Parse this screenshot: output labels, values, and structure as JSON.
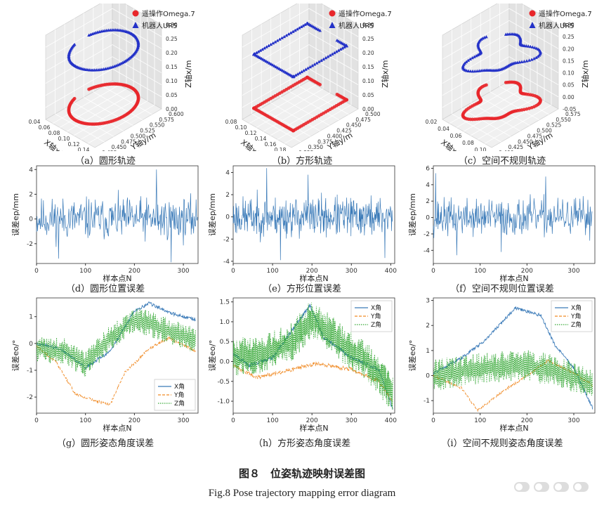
{
  "figure": {
    "title": "图８　位姿轨迹映射误差图",
    "subtitle": "Fig.8  Pose trajectory mapping error diagram"
  },
  "colors": {
    "red": "#e8262a",
    "blue": "#2432c8",
    "line": "#3a7ab8",
    "orange": "#f08a24",
    "green": "#3aaa3a"
  },
  "chart_data": [
    {
      "id": "a",
      "type": "scatter3d",
      "caption": "（a）圆形轨迹",
      "legend": [
        "遥操作Omega.7",
        "机器人UR5"
      ],
      "xlabel": "X轴x/m",
      "ylabel": "Y轴y/m",
      "zlabel": "Z轴x/m",
      "x_ticks": [
        "0.04",
        "0.06",
        "0.08",
        "0.10",
        "0.12",
        "0.14"
      ],
      "y_ticks": [
        "0.425",
        "0.450",
        "0.475",
        "0.500",
        "0.525",
        "0.550",
        "0.575",
        "0.600"
      ],
      "z_ticks": [
        "0.00",
        "0.05",
        "0.10",
        "0.15",
        "0.20",
        "0.25",
        "0.30"
      ],
      "shape": "circle"
    },
    {
      "id": "b",
      "type": "scatter3d",
      "caption": "（b）方形轨迹",
      "legend": [
        "遥操作Omega.7",
        "机器人UR5"
      ],
      "xlabel": "X轴x/m",
      "ylabel": "Y轴y/m",
      "zlabel": "Z轴x/m",
      "x_ticks": [
        "0.08",
        "0.10",
        "0.12",
        "0.14",
        "0.16",
        "0.18"
      ],
      "y_ticks": [
        "0.325",
        "0.350",
        "0.375",
        "0.400",
        "0.425",
        "0.450",
        "0.475",
        "0.500"
      ],
      "z_ticks": [
        "0.00",
        "0.05",
        "0.10",
        "0.15",
        "0.20",
        "0.25",
        "0.30"
      ],
      "shape": "square"
    },
    {
      "id": "c",
      "type": "scatter3d",
      "caption": "（c）空间不规则轨迹",
      "legend": [
        "遥操作Omega.7",
        "机器人UR5"
      ],
      "xlabel": "X轴x/m",
      "ylabel": "Y轴y/m",
      "zlabel": "Z轴x/m",
      "x_ticks": [
        "0.02",
        "0.04",
        "0.06",
        "0.08",
        "0.10"
      ],
      "y_ticks": [
        "0.400",
        "0.425",
        "0.450",
        "0.475",
        "0.500",
        "0.525",
        "0.550",
        "0.575"
      ],
      "z_ticks": [
        "-0.05",
        "0.00",
        "0.05",
        "0.10",
        "0.15",
        "0.20",
        "0.25",
        "0.30"
      ],
      "shape": "irregular"
    },
    {
      "id": "d",
      "type": "line",
      "caption": "（d）圆形位置误差",
      "xlabel": "样本点N",
      "ylabel": "误差ep/mm",
      "xlim": [
        0,
        330
      ],
      "ylim": [
        -3.6,
        4.3
      ],
      "x_ticks": [
        0,
        100,
        200,
        300
      ],
      "y_ticks": [
        -2,
        0,
        2,
        4
      ],
      "n": 330,
      "amp": 1.5,
      "seed": 11,
      "spikes": [
        [
          245,
          4.0
        ],
        [
          45,
          -3.2
        ],
        [
          275,
          -3.5
        ]
      ]
    },
    {
      "id": "e",
      "type": "line",
      "caption": "（e）方形位置误差",
      "xlabel": "样本点N",
      "ylabel": "误差ep/mm",
      "xlim": [
        0,
        410
      ],
      "ylim": [
        -4.2,
        4.6
      ],
      "x_ticks": [
        0,
        100,
        200,
        300,
        400
      ],
      "y_ticks": [
        -4,
        -2,
        0,
        2,
        4
      ],
      "n": 405,
      "amp": 1.6,
      "seed": 23,
      "spikes": [
        [
          85,
          4.4
        ],
        [
          190,
          3.8
        ],
        [
          120,
          -3.9
        ],
        [
          385,
          -3.7
        ]
      ]
    },
    {
      "id": "f",
      "type": "line",
      "caption": "（f）空间不规则位置误差",
      "xlabel": "样本点N",
      "ylabel": "误差ep/mm",
      "xlim": [
        0,
        345
      ],
      "ylim": [
        -5.6,
        6.3
      ],
      "x_ticks": [
        0,
        100,
        200,
        300
      ],
      "y_ticks": [
        -4,
        -2,
        0,
        2,
        4,
        6
      ],
      "n": 340,
      "amp": 2.0,
      "seed": 37,
      "spikes": [
        [
          5,
          5.4
        ],
        [
          240,
          5.0
        ],
        [
          50,
          -4.6
        ],
        [
          145,
          -4.2
        ]
      ]
    },
    {
      "id": "g",
      "type": "line",
      "caption": "（g）圆形姿态角度误差",
      "xlabel": "样本点N",
      "ylabel": "误差eo/°",
      "xlim": [
        0,
        330
      ],
      "ylim": [
        -2.6,
        1.7
      ],
      "x_ticks": [
        0,
        100,
        200,
        300
      ],
      "y_ticks": [
        -2,
        -1,
        0,
        1
      ],
      "legend_pos": "bottom-right",
      "series": [
        {
          "name": "X角",
          "style": "solid",
          "kp": [
            [
              0,
              0
            ],
            [
              50,
              -0.2
            ],
            [
              100,
              -0.9
            ],
            [
              150,
              -0.3
            ],
            [
              200,
              1.2
            ],
            [
              230,
              1.5
            ],
            [
              280,
              1.1
            ],
            [
              325,
              0.9
            ]
          ],
          "noise": 0.12
        },
        {
          "name": "Y角",
          "style": "dash",
          "kp": [
            [
              0,
              -0.1
            ],
            [
              40,
              -0.7
            ],
            [
              80,
              -1.9
            ],
            [
              150,
              -2.3
            ],
            [
              180,
              -1.1
            ],
            [
              230,
              -0.2
            ],
            [
              270,
              0.2
            ],
            [
              325,
              -0.3
            ]
          ],
          "noise": 0.1
        },
        {
          "name": "Z角",
          "style": "dot",
          "kp": [
            [
              0,
              -0.2
            ],
            [
              60,
              -0.3
            ],
            [
              100,
              -0.8
            ],
            [
              150,
              0.2
            ],
            [
              200,
              0.9
            ],
            [
              250,
              0.6
            ],
            [
              325,
              0.1
            ]
          ],
          "noise": 0.35
        }
      ]
    },
    {
      "id": "h",
      "type": "line",
      "caption": "（h）方形姿态角度误差",
      "xlabel": "样本点N",
      "ylabel": "误差eo/°",
      "xlim": [
        0,
        410
      ],
      "ylim": [
        -1.3,
        1.6
      ],
      "x_ticks": [
        0,
        100,
        200,
        300,
        400
      ],
      "y_ticks": [
        -1.0,
        -0.5,
        0.0,
        0.5,
        1.0,
        1.5
      ],
      "legend_pos": "top-right",
      "series": [
        {
          "name": "X角",
          "style": "solid",
          "kp": [
            [
              0,
              0.2
            ],
            [
              40,
              -0.1
            ],
            [
              100,
              0.1
            ],
            [
              150,
              0.8
            ],
            [
              195,
              1.4
            ],
            [
              230,
              0.6
            ],
            [
              300,
              0.1
            ],
            [
              370,
              -0.2
            ],
            [
              405,
              -1.2
            ]
          ],
          "noise": 0.1
        },
        {
          "name": "Y角",
          "style": "dash",
          "kp": [
            [
              0,
              -0.1
            ],
            [
              60,
              -0.4
            ],
            [
              150,
              -0.2
            ],
            [
              210,
              -0.05
            ],
            [
              300,
              -0.2
            ],
            [
              370,
              -0.5
            ],
            [
              405,
              -1.0
            ]
          ],
          "noise": 0.1
        },
        {
          "name": "Z角",
          "style": "dot",
          "kp": [
            [
              0,
              0.1
            ],
            [
              80,
              0.2
            ],
            [
              150,
              0.5
            ],
            [
              200,
              1.1
            ],
            [
              280,
              0.4
            ],
            [
              340,
              0.0
            ],
            [
              405,
              -0.8
            ]
          ],
          "noise": 0.35
        }
      ]
    },
    {
      "id": "i",
      "type": "line",
      "caption": "（i）空间不规则姿态角度误差",
      "xlabel": "样本点N",
      "ylabel": "误差eo/°",
      "xlim": [
        0,
        345
      ],
      "ylim": [
        -1.5,
        3.1
      ],
      "x_ticks": [
        0,
        100,
        200,
        300
      ],
      "y_ticks": [
        -1,
        0,
        1,
        2,
        3
      ],
      "legend_pos": "top-right",
      "series": [
        {
          "name": "X角",
          "style": "solid",
          "kp": [
            [
              0,
              0.1
            ],
            [
              60,
              0.7
            ],
            [
              110,
              1.4
            ],
            [
              175,
              2.7
            ],
            [
              230,
              2.4
            ],
            [
              260,
              1.2
            ],
            [
              300,
              0.3
            ],
            [
              340,
              -1.3
            ]
          ],
          "noise": 0.12
        },
        {
          "name": "Y角",
          "style": "dash",
          "kp": [
            [
              0,
              0.0
            ],
            [
              60,
              -0.5
            ],
            [
              95,
              -1.4
            ],
            [
              150,
              -0.6
            ],
            [
              200,
              0.0
            ],
            [
              245,
              0.6
            ],
            [
              300,
              0.1
            ],
            [
              340,
              -0.4
            ]
          ],
          "noise": 0.1
        },
        {
          "name": "Z角",
          "style": "dot",
          "kp": [
            [
              0,
              0.0
            ],
            [
              100,
              0.3
            ],
            [
              200,
              0.4
            ],
            [
              260,
              0.2
            ],
            [
              340,
              -0.3
            ]
          ],
          "noise": 0.45
        }
      ]
    }
  ]
}
